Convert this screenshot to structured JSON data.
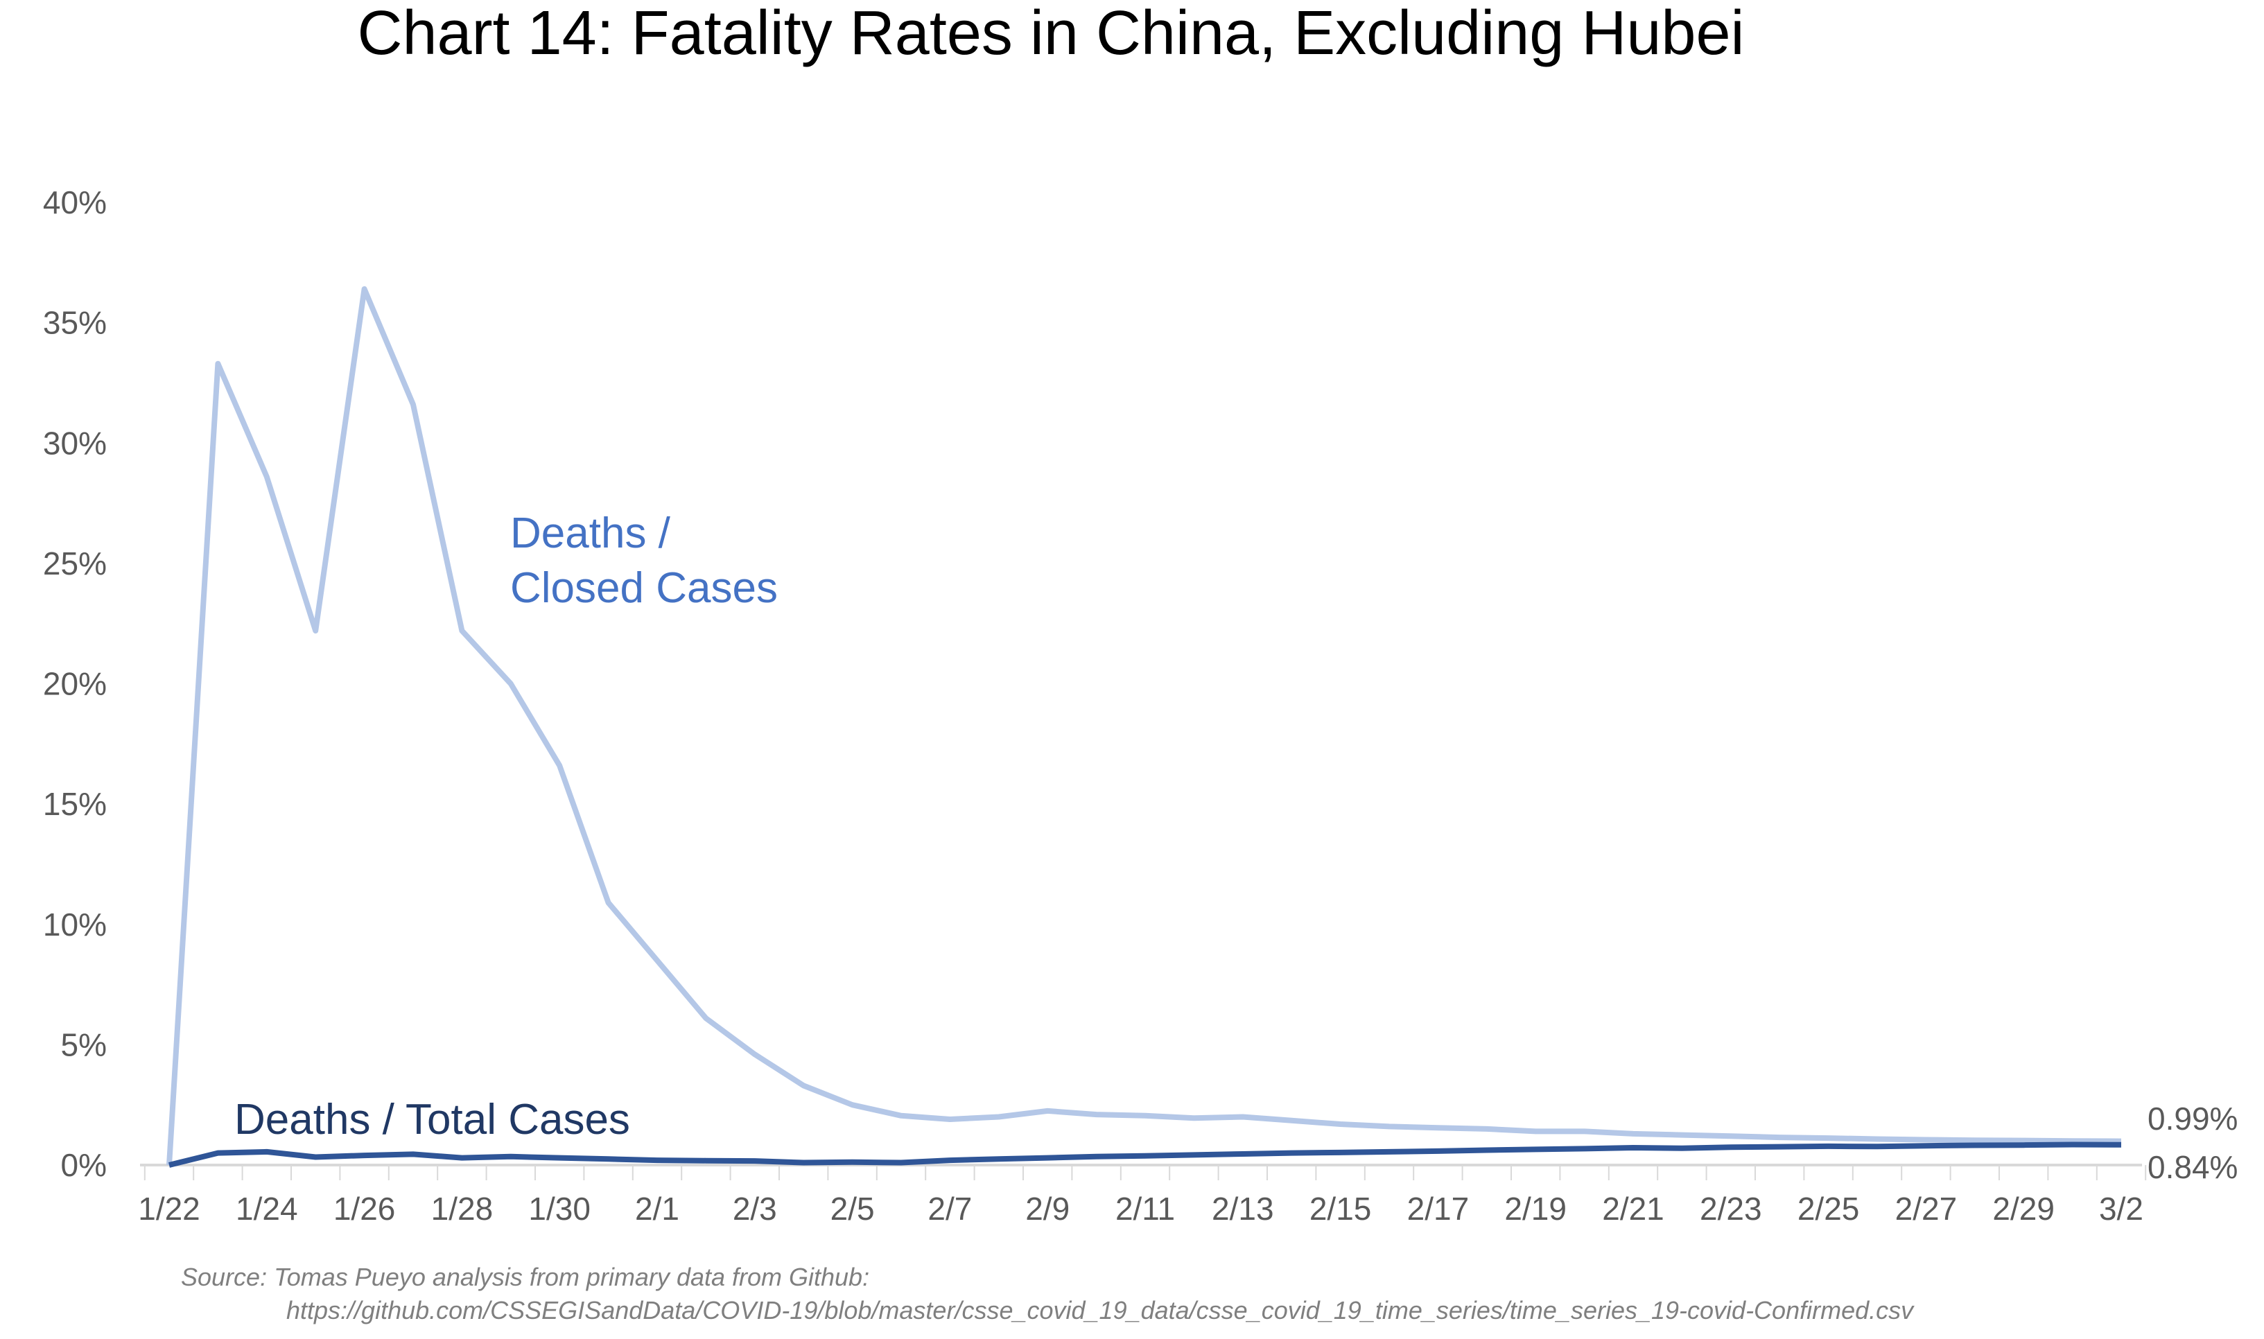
{
  "chart_data": {
    "type": "line",
    "title": "Chart 14: Fatality Rates in China, Excluding Hubei",
    "xlabel": "",
    "ylabel": "",
    "ylim": [
      0,
      40
    ],
    "y_ticks": [
      "0%",
      "5%",
      "10%",
      "15%",
      "20%",
      "25%",
      "30%",
      "35%",
      "40%"
    ],
    "x_tick_labels": [
      "1/22",
      "1/24",
      "1/26",
      "1/28",
      "1/30",
      "2/1",
      "2/3",
      "2/5",
      "2/7",
      "2/9",
      "2/11",
      "2/13",
      "2/15",
      "2/17",
      "2/19",
      "2/21",
      "2/23",
      "2/25",
      "2/27",
      "2/29",
      "3/2"
    ],
    "x": [
      "1/22",
      "1/23",
      "1/24",
      "1/25",
      "1/26",
      "1/27",
      "1/28",
      "1/29",
      "1/30",
      "1/31",
      "2/1",
      "2/2",
      "2/3",
      "2/4",
      "2/5",
      "2/6",
      "2/7",
      "2/8",
      "2/9",
      "2/10",
      "2/11",
      "2/12",
      "2/13",
      "2/14",
      "2/15",
      "2/16",
      "2/17",
      "2/18",
      "2/19",
      "2/20",
      "2/21",
      "2/22",
      "2/23",
      "2/24",
      "2/25",
      "2/26",
      "2/27",
      "2/28",
      "2/29",
      "3/1",
      "3/2"
    ],
    "grid": false,
    "series": [
      {
        "name": "Deaths / Closed Cases",
        "color": "#b4c7e7",
        "label_color": "#4472c4",
        "end_label": "0.99%",
        "values": [
          0,
          33.3,
          28.6,
          22.2,
          36.4,
          31.6,
          22.2,
          20.0,
          16.6,
          10.9,
          8.5,
          6.1,
          4.6,
          3.3,
          2.5,
          2.05,
          1.9,
          2.0,
          2.25,
          2.1,
          2.05,
          1.95,
          2.0,
          1.85,
          1.7,
          1.6,
          1.55,
          1.5,
          1.4,
          1.4,
          1.3,
          1.25,
          1.2,
          1.15,
          1.12,
          1.08,
          1.05,
          1.03,
          1.02,
          1.0,
          0.99
        ]
      },
      {
        "name": "Deaths / Total Cases",
        "color": "#2f5597",
        "label_color": "#203864",
        "end_label": "0.84%",
        "values": [
          0,
          0.5,
          0.55,
          0.33,
          0.4,
          0.45,
          0.3,
          0.35,
          0.3,
          0.25,
          0.2,
          0.18,
          0.17,
          0.1,
          0.12,
          0.1,
          0.2,
          0.25,
          0.3,
          0.35,
          0.38,
          0.42,
          0.46,
          0.5,
          0.52,
          0.55,
          0.58,
          0.62,
          0.65,
          0.68,
          0.72,
          0.7,
          0.74,
          0.76,
          0.78,
          0.77,
          0.8,
          0.82,
          0.83,
          0.85,
          0.84
        ]
      }
    ],
    "source_line1": "Source: Tomas Pueyo analysis from primary data from Github:",
    "source_line2": "https://github.com/CSSEGISandData/COVID-19/blob/master/csse_covid_19_data/csse_covid_19_time_series/time_series_19-covid-Confirmed.csv"
  }
}
